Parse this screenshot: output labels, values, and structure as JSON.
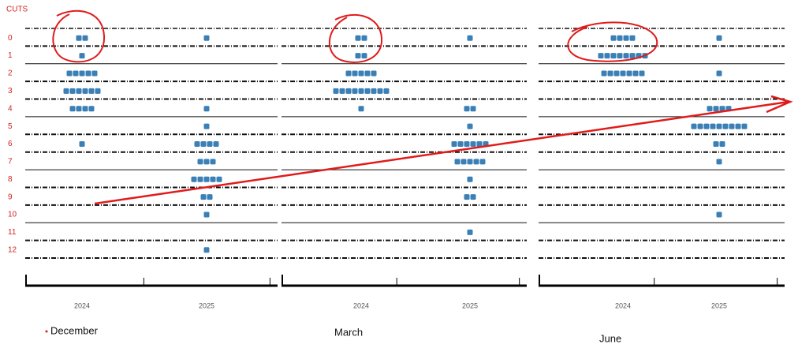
{
  "chart_data": {
    "type": "dot_plot",
    "y_label": "CUTS",
    "ylim": [
      -0.5,
      12.5
    ],
    "yticks": [
      0,
      1,
      2,
      3,
      4,
      5,
      6,
      7,
      8,
      9,
      10,
      11,
      12
    ],
    "color": "#3a7fb5",
    "panels": [
      {
        "name": "December",
        "categories": [
          "2024",
          "2025"
        ],
        "counts": [
          [
            2,
            1,
            5,
            6,
            4,
            0,
            1,
            0,
            0,
            0,
            0,
            0,
            0
          ],
          [
            1,
            0,
            0,
            0,
            1,
            1,
            4,
            3,
            5,
            2,
            1,
            0,
            1
          ]
        ]
      },
      {
        "name": "March",
        "categories": [
          "2024",
          "2025"
        ],
        "counts": [
          [
            2,
            2,
            5,
            9,
            1,
            0,
            0,
            0,
            0,
            0,
            0,
            0,
            0
          ],
          [
            1,
            0,
            0,
            0,
            2,
            1,
            6,
            5,
            1,
            2,
            0,
            1,
            0
          ]
        ]
      },
      {
        "name": "June",
        "categories": [
          "2024",
          "2025"
        ],
        "counts": [
          [
            4,
            8,
            7,
            0,
            0,
            0,
            0,
            0,
            0,
            0,
            0,
            0,
            0
          ],
          [
            1,
            0,
            1,
            0,
            4,
            9,
            2,
            1,
            0,
            0,
            1,
            0,
            0
          ]
        ]
      }
    ]
  }
}
